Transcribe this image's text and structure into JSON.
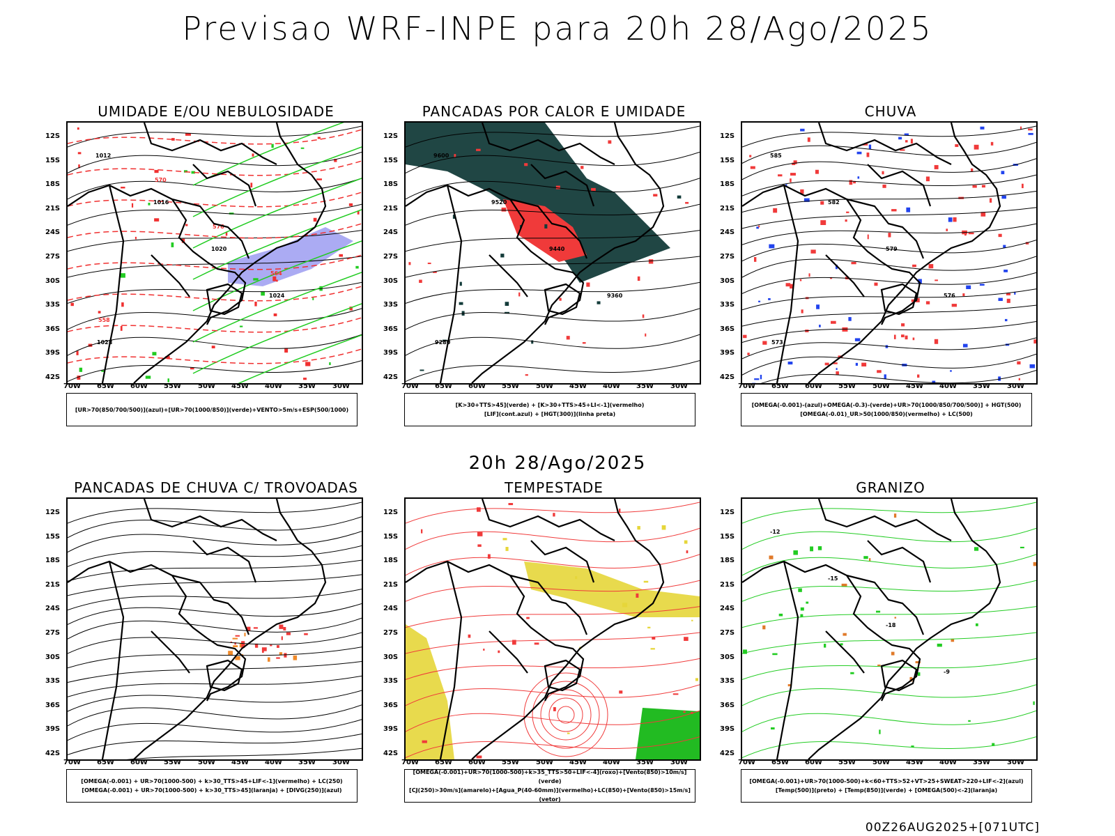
{
  "title": "Previsao WRF-INPE  para 20h 28/Ago/2025",
  "mid_title": "20h 28/Ago/2025",
  "footer": "00Z26AUG2025+[071UTC]",
  "lat_labels": [
    "12S",
    "15S",
    "18S",
    "21S",
    "24S",
    "27S",
    "30S",
    "33S",
    "36S",
    "39S",
    "42S"
  ],
  "lon_labels": [
    "70W",
    "65W",
    "60W",
    "55W",
    "50W",
    "45W",
    "40W",
    "35W",
    "30W"
  ],
  "panels": [
    {
      "title": "UMIDADE E/OU NEBULOSIDADE",
      "legend": [
        "[UR>70(850/700/500)](azul)+[UR>70(1000/850)](verde)+VENTO>5m/s+ESP(500/1000)"
      ],
      "colors": {
        "primary": "#f03030",
        "secondary": "#22cc22",
        "fill": "#8888ee"
      },
      "contour_labels": [
        "1012",
        "1016",
        "1020",
        "1024",
        "1028",
        "570",
        "576",
        "564",
        "558"
      ]
    },
    {
      "title": "PANCADAS POR CALOR E UMIDADE",
      "legend": [
        "[K>30+TTS>45](verde) + [K>30+TTS>45+LI<-1](vermelho)",
        "[LIF](cont.azul) + [HGT(300)](linha preta)"
      ],
      "colors": {
        "primary": "#f03a3a",
        "secondary": "#143c3a",
        "fill": "#2233dd"
      },
      "contour_labels": [
        "9600",
        "9520",
        "9440",
        "9360",
        "9280"
      ]
    },
    {
      "title": "CHUVA",
      "legend": [
        "[OMEGA(-0.001)-(azul)+OMEGA(-0.3)-(verde)+UR>70(1000/850/700/500)] + HGT(500)",
        "[OMEGA(-0.01)_UR>50(1000/850)(vermelho) + LC(500)"
      ],
      "colors": {
        "primary": "#f03a3a",
        "secondary": "#2244ee",
        "fill": "#33aa33"
      },
      "contour_labels": [
        "585",
        "582",
        "579",
        "576",
        "573"
      ]
    },
    {
      "title": "PANCADAS DE CHUVA C/ TROVOADAS",
      "legend": [
        "[OMEGA(-0.001) + UR>70(1000-500) + k>30_TTS>45+LIF<-1](vermelho) + LC(250)",
        "[OMEGA(-0.001) + UR>70(1000-500) + k>30_TTS>45](laranja) + [DIVG(250)](azul)"
      ],
      "colors": {
        "primary": "#f03a3a",
        "secondary": "#f08a2a",
        "fill": "#3355ee"
      },
      "contour_labels": []
    },
    {
      "title": "TEMPESTADE",
      "legend": [
        "[OMEGA(-0.001)+UR>70(1000-500)+k>35_TTS>50+LIF<-4](roxo)+[Vento(850)>10m/s](verde)",
        "[CJ(250)>30m/s](amarelo)+[Agua_P(40-60mm)](vermelho)+LC(850)+[Vento(850)>15m/s](vetor)"
      ],
      "colors": {
        "primary": "#f03a3a",
        "secondary": "#e6d63a",
        "fill": "#22bb22"
      },
      "contour_labels": []
    },
    {
      "title": "GRANIZO",
      "legend": [
        "[OMEGA(-0.001)+UR>70(1000-500)+k<60+TTS>52+VT>25+SWEAT>220+LIF<-2](azul)",
        "[Temp(500)](preto) + [Temp(850)](verde) + [OMEGA(500)<-2](laranja)"
      ],
      "colors": {
        "primary": "#22cc22",
        "secondary": "#e07a2a",
        "fill": "#2244ee"
      },
      "contour_labels": [
        "-12",
        "-15",
        "-18",
        "-9"
      ]
    }
  ]
}
